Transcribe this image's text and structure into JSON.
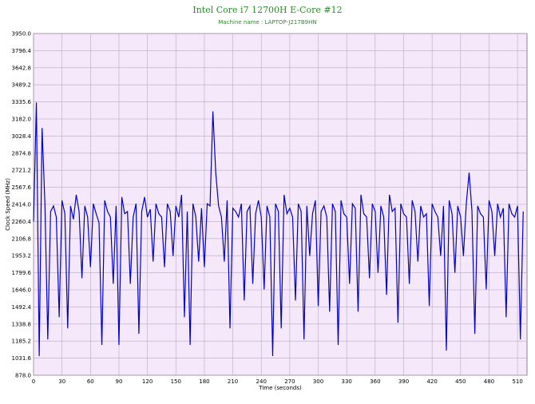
{
  "chart_data": {
    "type": "line",
    "title": "Intel Core i7 12700H E-Core #12",
    "subtitle": "Machine name : LAPTOP-J217B9HN",
    "x_label": "Time (seconds)",
    "y_label": "Clock Speed (MHz)",
    "xlim": [
      0,
      520
    ],
    "xticks": [
      0,
      30,
      60,
      90,
      120,
      150,
      180,
      210,
      240,
      270,
      300,
      330,
      360,
      390,
      420,
      450,
      480,
      510
    ],
    "ylim": [
      878,
      3950
    ],
    "yticks": [
      {
        "value": 878,
        "label": "878.0"
      },
      1031.6,
      1185.2,
      1338.8,
      1492.4,
      {
        "value": 1646,
        "label": "1646.0"
      },
      1799.6,
      1953.2,
      2106.8,
      2260.4,
      {
        "value": 2414,
        "label": "2414.0"
      },
      2567.6,
      2721.2,
      2874.8,
      3028.4,
      {
        "value": 3182,
        "label": "3182.0"
      },
      3335.6,
      3489.2,
      3642.8,
      3796.4,
      {
        "value": 3950,
        "label": "3950.0"
      }
    ],
    "grid": true,
    "x": [
      0,
      3,
      6,
      9,
      12,
      15,
      18,
      21,
      24,
      27,
      30,
      33,
      36,
      39,
      42,
      45,
      48,
      51,
      54,
      57,
      60,
      63,
      66,
      69,
      72,
      75,
      78,
      81,
      84,
      87,
      90,
      93,
      96,
      99,
      102,
      105,
      108,
      111,
      114,
      117,
      120,
      123,
      126,
      129,
      132,
      135,
      138,
      141,
      144,
      147,
      150,
      153,
      156,
      159,
      162,
      165,
      168,
      171,
      174,
      177,
      180,
      183,
      186,
      189,
      192,
      195,
      198,
      201,
      204,
      207,
      210,
      213,
      216,
      219,
      222,
      225,
      228,
      231,
      234,
      237,
      240,
      243,
      246,
      249,
      252,
      255,
      258,
      261,
      264,
      267,
      270,
      273,
      276,
      279,
      282,
      285,
      288,
      291,
      294,
      297,
      300,
      303,
      306,
      309,
      312,
      315,
      318,
      321,
      324,
      327,
      330,
      333,
      336,
      339,
      342,
      345,
      348,
      351,
      354,
      357,
      360,
      363,
      366,
      369,
      372,
      375,
      378,
      381,
      384,
      387,
      390,
      393,
      396,
      399,
      402,
      405,
      408,
      411,
      414,
      417,
      420,
      423,
      426,
      429,
      432,
      435,
      438,
      441,
      444,
      447,
      450,
      453,
      456,
      459,
      462,
      465,
      468,
      471,
      474,
      477,
      480,
      483,
      486,
      489,
      492,
      495,
      498,
      501,
      504,
      507,
      510,
      513,
      516
    ],
    "series": [
      {
        "name": "Clock Speed",
        "color": "#0000cc",
        "values": [
          2260,
          3330,
          1050,
          3100,
          2420,
          1200,
          2350,
          2400,
          2300,
          1400,
          2450,
          2330,
          1300,
          2400,
          2280,
          2500,
          2350,
          1750,
          2400,
          2300,
          1850,
          2420,
          2330,
          2250,
          1150,
          2450,
          2350,
          2300,
          1700,
          2400,
          1150,
          2480,
          2330,
          2350,
          1700,
          2300,
          2420,
          1250,
          2350,
          2480,
          2300,
          2370,
          1900,
          2420,
          2330,
          2300,
          1850,
          2420,
          2350,
          1950,
          2400,
          2300,
          2500,
          1400,
          2350,
          1150,
          2420,
          2300,
          1900,
          2380,
          1850,
          2420,
          2400,
          3250,
          2700,
          2400,
          2300,
          1900,
          2450,
          1300,
          2380,
          2350,
          2300,
          2420,
          1550,
          2350,
          2400,
          1700,
          2330,
          2450,
          2300,
          1650,
          2400,
          2300,
          1050,
          2420,
          2350,
          1300,
          2500,
          2330,
          2380,
          2300,
          1550,
          2420,
          2350,
          1200,
          2400,
          1950,
          2330,
          2450,
          1500,
          2350,
          2400,
          2300,
          1450,
          2420,
          2350,
          1150,
          2450,
          2330,
          2300,
          1700,
          2420,
          2380,
          1450,
          2500,
          2330,
          2300,
          1750,
          2420,
          2350,
          1800,
          2400,
          2300,
          1600,
          2500,
          2350,
          2380,
          1350,
          2420,
          2330,
          2300,
          1700,
          2450,
          2350,
          1900,
          2400,
          2300,
          2330,
          1500,
          2420,
          2350,
          2300,
          1950,
          2400,
          1100,
          2450,
          2330,
          1800,
          2400,
          2300,
          1950,
          2420,
          2700,
          2350,
          1250,
          2400,
          2330,
          2300,
          1650,
          2450,
          2350,
          1950,
          2420,
          2300,
          2380,
          1400,
          2420,
          2330,
          2300,
          2400,
          1200,
          2350
        ]
      }
    ]
  }
}
